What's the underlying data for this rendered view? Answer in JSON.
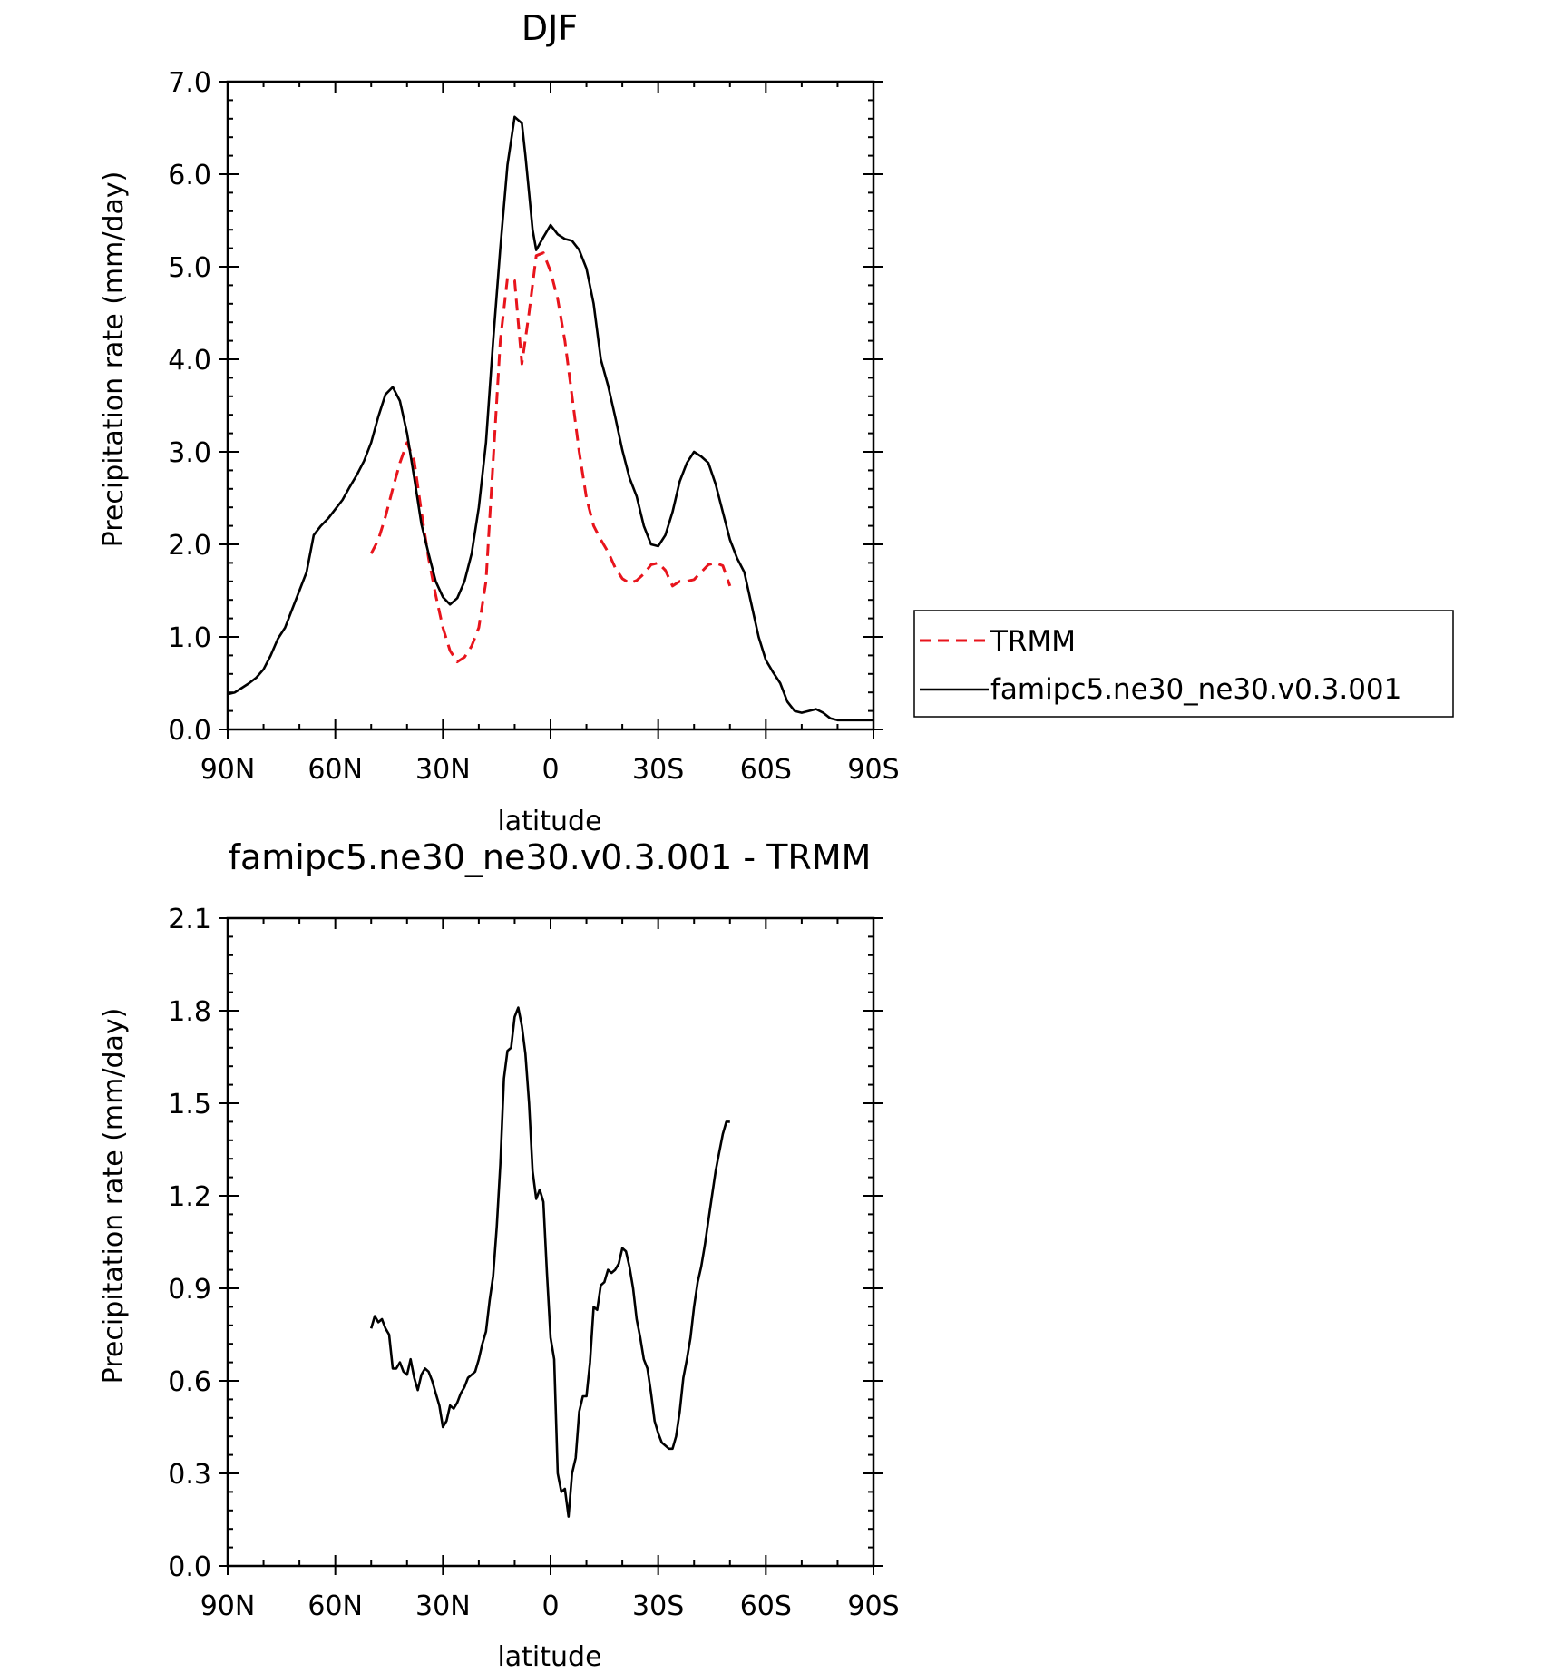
{
  "chart_data": [
    {
      "type": "line",
      "title": "DJF",
      "xlabel": "latitude",
      "ylabel": "Precipitation rate (mm/day)",
      "xlim": [
        90,
        -90
      ],
      "ylim": [
        0,
        7
      ],
      "xticks": [
        90,
        60,
        30,
        0,
        -30,
        -60,
        -90
      ],
      "xtick_labels": [
        "90N",
        "60N",
        "30N",
        "0",
        "30S",
        "60S",
        "90S"
      ],
      "yticks": [
        0,
        1,
        2,
        3,
        4,
        5,
        6,
        7
      ],
      "ytick_labels": [
        "0.0",
        "1.0",
        "2.0",
        "3.0",
        "4.0",
        "5.0",
        "6.0",
        "7.0"
      ],
      "legend_position": "right",
      "series": [
        {
          "name": "TRMM",
          "color": "#e8141c",
          "dash": "dashed",
          "x": [
            50,
            48,
            46,
            44,
            42,
            40,
            38,
            36,
            34,
            32,
            30,
            28,
            26,
            24,
            22,
            20,
            18,
            16,
            14,
            12,
            10,
            8,
            6,
            4,
            2,
            0,
            -2,
            -4,
            -6,
            -8,
            -10,
            -12,
            -14,
            -16,
            -18,
            -20,
            -22,
            -24,
            -26,
            -28,
            -30,
            -32,
            -34,
            -36,
            -38,
            -40,
            -42,
            -44,
            -46,
            -48,
            -50
          ],
          "y": [
            1.9,
            2.05,
            2.3,
            2.6,
            2.88,
            3.1,
            2.9,
            2.35,
            1.85,
            1.45,
            1.1,
            0.85,
            0.73,
            0.78,
            0.9,
            1.1,
            1.6,
            2.9,
            4.2,
            4.88,
            4.85,
            3.95,
            4.5,
            5.12,
            5.15,
            4.95,
            4.65,
            4.2,
            3.6,
            3.0,
            2.5,
            2.2,
            2.05,
            1.92,
            1.75,
            1.63,
            1.58,
            1.61,
            1.68,
            1.78,
            1.8,
            1.72,
            1.55,
            1.6,
            1.6,
            1.62,
            1.7,
            1.78,
            1.8,
            1.77,
            1.55
          ]
        },
        {
          "name": "famipc5.ne30_ne30.v0.3.001",
          "color": "#000000",
          "dash": "solid",
          "x": [
            90,
            88,
            86,
            84,
            82,
            80,
            78,
            76,
            74,
            72,
            70,
            68,
            66,
            64,
            62,
            60,
            58,
            56,
            54,
            52,
            50,
            48,
            46,
            44,
            42,
            40,
            38,
            36,
            34,
            32,
            30,
            28,
            26,
            24,
            22,
            20,
            18,
            16,
            14,
            12,
            10,
            8,
            7,
            6,
            5,
            4,
            2,
            0,
            -2,
            -4,
            -6,
            -8,
            -10,
            -12,
            -14,
            -16,
            -18,
            -20,
            -22,
            -24,
            -26,
            -28,
            -30,
            -32,
            -34,
            -36,
            -38,
            -40,
            -42,
            -44,
            -46,
            -48,
            -50,
            -52,
            -54,
            -56,
            -58,
            -60,
            -62,
            -64,
            -66,
            -68,
            -70,
            -72,
            -74,
            -76,
            -78,
            -80,
            -82,
            -84,
            -86,
            -88,
            -90
          ],
          "y": [
            0.38,
            0.4,
            0.45,
            0.5,
            0.56,
            0.65,
            0.8,
            0.98,
            1.1,
            1.3,
            1.5,
            1.7,
            2.1,
            2.2,
            2.28,
            2.38,
            2.48,
            2.62,
            2.75,
            2.9,
            3.1,
            3.38,
            3.62,
            3.7,
            3.55,
            3.2,
            2.72,
            2.22,
            1.9,
            1.6,
            1.43,
            1.35,
            1.42,
            1.6,
            1.9,
            2.4,
            3.1,
            4.2,
            5.2,
            6.1,
            6.62,
            6.55,
            6.2,
            5.8,
            5.4,
            5.18,
            5.32,
            5.45,
            5.35,
            5.3,
            5.28,
            5.18,
            4.98,
            4.6,
            4.0,
            3.72,
            3.38,
            3.02,
            2.72,
            2.52,
            2.2,
            2.0,
            1.98,
            2.1,
            2.35,
            2.68,
            2.88,
            3.0,
            2.95,
            2.88,
            2.65,
            2.35,
            2.05,
            1.85,
            1.7,
            1.35,
            1.0,
            0.75,
            0.62,
            0.5,
            0.3,
            0.2,
            0.18,
            0.2,
            0.22,
            0.18,
            0.12,
            0.1,
            0.1,
            0.1,
            0.1,
            0.1,
            0.1
          ]
        }
      ]
    },
    {
      "type": "line",
      "title": "famipc5.ne30_ne30.v0.3.001 - TRMM",
      "xlabel": "latitude",
      "ylabel": "Precipitation rate (mm/day)",
      "xlim": [
        90,
        -90
      ],
      "ylim": [
        0,
        2.1
      ],
      "xticks": [
        90,
        60,
        30,
        0,
        -30,
        -60,
        -90
      ],
      "xtick_labels": [
        "90N",
        "60N",
        "30N",
        "0",
        "30S",
        "60S",
        "90S"
      ],
      "yticks": [
        0,
        0.3,
        0.6,
        0.9,
        1.2,
        1.5,
        1.8,
        2.1
      ],
      "ytick_labels": [
        "0.0",
        "0.3",
        "0.6",
        "0.9",
        "1.2",
        "1.5",
        "1.8",
        "2.1"
      ],
      "series": [
        {
          "color": "#000000",
          "dash": "solid",
          "x": [
            50,
            49,
            48,
            47,
            46,
            45,
            44,
            43,
            42,
            41,
            40,
            39,
            38,
            37,
            36,
            35,
            34,
            33,
            32,
            31,
            30,
            29,
            28,
            27,
            26,
            25,
            24,
            23,
            22,
            21,
            20,
            19,
            18,
            17,
            16,
            15,
            14,
            13,
            12,
            11,
            10,
            9,
            8,
            7,
            6,
            5,
            4,
            3,
            2,
            1,
            0,
            -1,
            -2,
            -3,
            -4,
            -5,
            -6,
            -7,
            -8,
            -9,
            -10,
            -11,
            -12,
            -13,
            -14,
            -15,
            -16,
            -17,
            -18,
            -19,
            -20,
            -21,
            -22,
            -23,
            -24,
            -25,
            -26,
            -27,
            -28,
            -29,
            -30,
            -31,
            -32,
            -33,
            -34,
            -35,
            -36,
            -37,
            -38,
            -39,
            -40,
            -41,
            -42,
            -43,
            -44,
            -45,
            -46,
            -47,
            -48,
            -49,
            -50
          ],
          "y": [
            0.77,
            0.81,
            0.79,
            0.8,
            0.77,
            0.75,
            0.64,
            0.64,
            0.66,
            0.63,
            0.62,
            0.67,
            0.61,
            0.57,
            0.62,
            0.64,
            0.63,
            0.6,
            0.56,
            0.52,
            0.45,
            0.47,
            0.52,
            0.51,
            0.53,
            0.56,
            0.58,
            0.61,
            0.62,
            0.63,
            0.67,
            0.72,
            0.76,
            0.86,
            0.94,
            1.1,
            1.3,
            1.58,
            1.67,
            1.68,
            1.78,
            1.81,
            1.75,
            1.66,
            1.5,
            1.28,
            1.19,
            1.22,
            1.18,
            0.95,
            0.74,
            0.67,
            0.3,
            0.24,
            0.25,
            0.16,
            0.3,
            0.35,
            0.5,
            0.55,
            0.55,
            0.66,
            0.84,
            0.83,
            0.91,
            0.92,
            0.96,
            0.95,
            0.96,
            0.98,
            1.03,
            1.02,
            0.97,
            0.9,
            0.8,
            0.74,
            0.67,
            0.64,
            0.56,
            0.47,
            0.43,
            0.4,
            0.39,
            0.38,
            0.38,
            0.42,
            0.5,
            0.61,
            0.67,
            0.74,
            0.84,
            0.92,
            0.97,
            1.04,
            1.12,
            1.2,
            1.28,
            1.34,
            1.4,
            1.44,
            1.44
          ]
        }
      ]
    }
  ]
}
